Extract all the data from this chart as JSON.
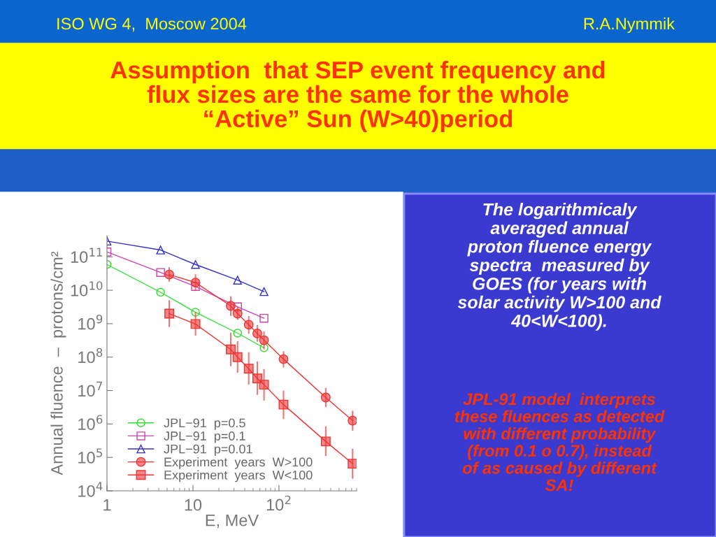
{
  "chart_data": {
    "type": "line",
    "title": "Assumption  that SEP event frequency and\nflux sizes are the same for the whole\n“Active” Sun (W>40)period",
    "xlabel": "E, MeV",
    "ylabel": "Annual fluence  –  protons/cm²",
    "annotations": [
      "ISO WG 4,  Moscow 2004",
      "R.A.Nymmik",
      "The logarithmicaly\naveraged annual\nproton fluence energy\nspectra  measured by\nGOES (for years with\nsolar activity W>100 and\n40<W<100).",
      "JPL-91 model  interprets\nthese fluences as detected\nwith different probability\n(from 0.1 o 0.7), instead\nof as caused by different\nSA!"
    ],
    "log": "xy",
    "grid": false,
    "legend": "bottom left",
    "line_style": "solid",
    "xlim": [
      1,
      800
    ],
    "ylim": [
      10000,
      430000000000
    ],
    "xticks": [
      {
        "value": 1,
        "label": "1"
      },
      {
        "value": 10,
        "label": "10"
      },
      {
        "value": 100,
        "label": "10$^{2}$"
      }
    ],
    "yticks": [
      {
        "value": 10000,
        "label": "10$^{4}$"
      },
      {
        "value": 100000,
        "label": "10$^{5}$"
      },
      {
        "value": 1000000,
        "label": "10$^{6}$"
      },
      {
        "value": 10000000,
        "label": "10$^{7}$"
      },
      {
        "value": 100000000,
        "label": "10$^{8}$"
      },
      {
        "value": 1000000000,
        "label": "10$^{9}$"
      },
      {
        "value": 10000000000,
        "label": "10$^{10}$"
      },
      {
        "value": 100000000000,
        "label": "10$^{11}$"
      }
    ],
    "series": [
      {
        "name": "JPL−91  p=0.5",
        "color": "#33dd33",
        "marker": "circle",
        "x": [
          1,
          4.2,
          10.7,
          33,
          67
        ],
        "values": [
          59000000000.0,
          8700000000.0,
          2200000000.0,
          520000000.0,
          190000000.0
        ]
      },
      {
        "name": "JPL−91  p=0.1",
        "color": "#cc44aa",
        "marker": "square",
        "x": [
          1,
          4.2,
          10.7,
          33,
          67
        ],
        "values": [
          140000000000.0,
          34000000000.0,
          13000000000.0,
          3200000000.0,
          1450000000.0
        ]
      },
      {
        "name": "JPL−91  p=0.01",
        "color": "#3333cc",
        "marker": "triangle",
        "x": [
          1,
          4.2,
          10.7,
          33,
          67
        ],
        "values": [
          295000000000.0,
          160000000000.0,
          59000000000.0,
          20000000000.0,
          9100000000.0
        ]
      },
      {
        "name": "Experiment  years  W>100",
        "color": "#ee3333",
        "marker": "circle",
        "x": [
          5.3,
          10.7,
          27.5,
          33,
          44.5,
          56,
          67,
          113,
          350,
          718
        ],
        "values": [
          29500000000.0,
          17000000000.0,
          3400000000.0,
          2000000000.0,
          930000000.0,
          510000000.0,
          320000000.0,
          87000000.0,
          6200000.0,
          1260000.0
        ],
        "errors": [
          [
            18000000000.0,
            49000000000.0
          ],
          [
            9500000000.0,
            30000000000.0
          ],
          [
            1700000000.0,
            6600000000.0
          ],
          [
            1300000000.0,
            3200000000.0
          ],
          [
            500000000.0,
            1700000000.0
          ],
          [
            290000000.0,
            910000000.0
          ],
          [
            170000000.0,
            590000000.0
          ],
          [
            49000000.0,
            150000000.0
          ],
          [
            3200000.0,
            12000000.0
          ],
          [
            630000.0,
            2500000.0
          ]
        ]
      },
      {
        "name": "Experiment  years  W<100",
        "color": "#ee3333",
        "marker": "square",
        "x": [
          5.3,
          10.7,
          27.5,
          33,
          44.5,
          56,
          67,
          113,
          350,
          718
        ],
        "values": [
          2000000000.0,
          980000000.0,
          170000000.0,
          100000000.0,
          45000000.0,
          23000000.0,
          15000000.0,
          3800000.0,
          300000.0,
          65000.0
        ],
        "errors": [
          [
            800000000.0,
            5000000000.0
          ],
          [
            440000000.0,
            2200000000.0
          ],
          [
            54000000.0,
            540000000.0
          ],
          [
            34000000.0,
            300000000.0
          ],
          [
            15000000.0,
            140000000.0
          ],
          [
            7400000.0,
            74000000.0
          ],
          [
            5000000.0,
            44000000.0
          ],
          [
            1400000.0,
            10000000.0
          ],
          [
            110000.0,
            850000.0
          ],
          [
            23000.0,
            180000.0
          ]
        ]
      }
    ]
  }
}
